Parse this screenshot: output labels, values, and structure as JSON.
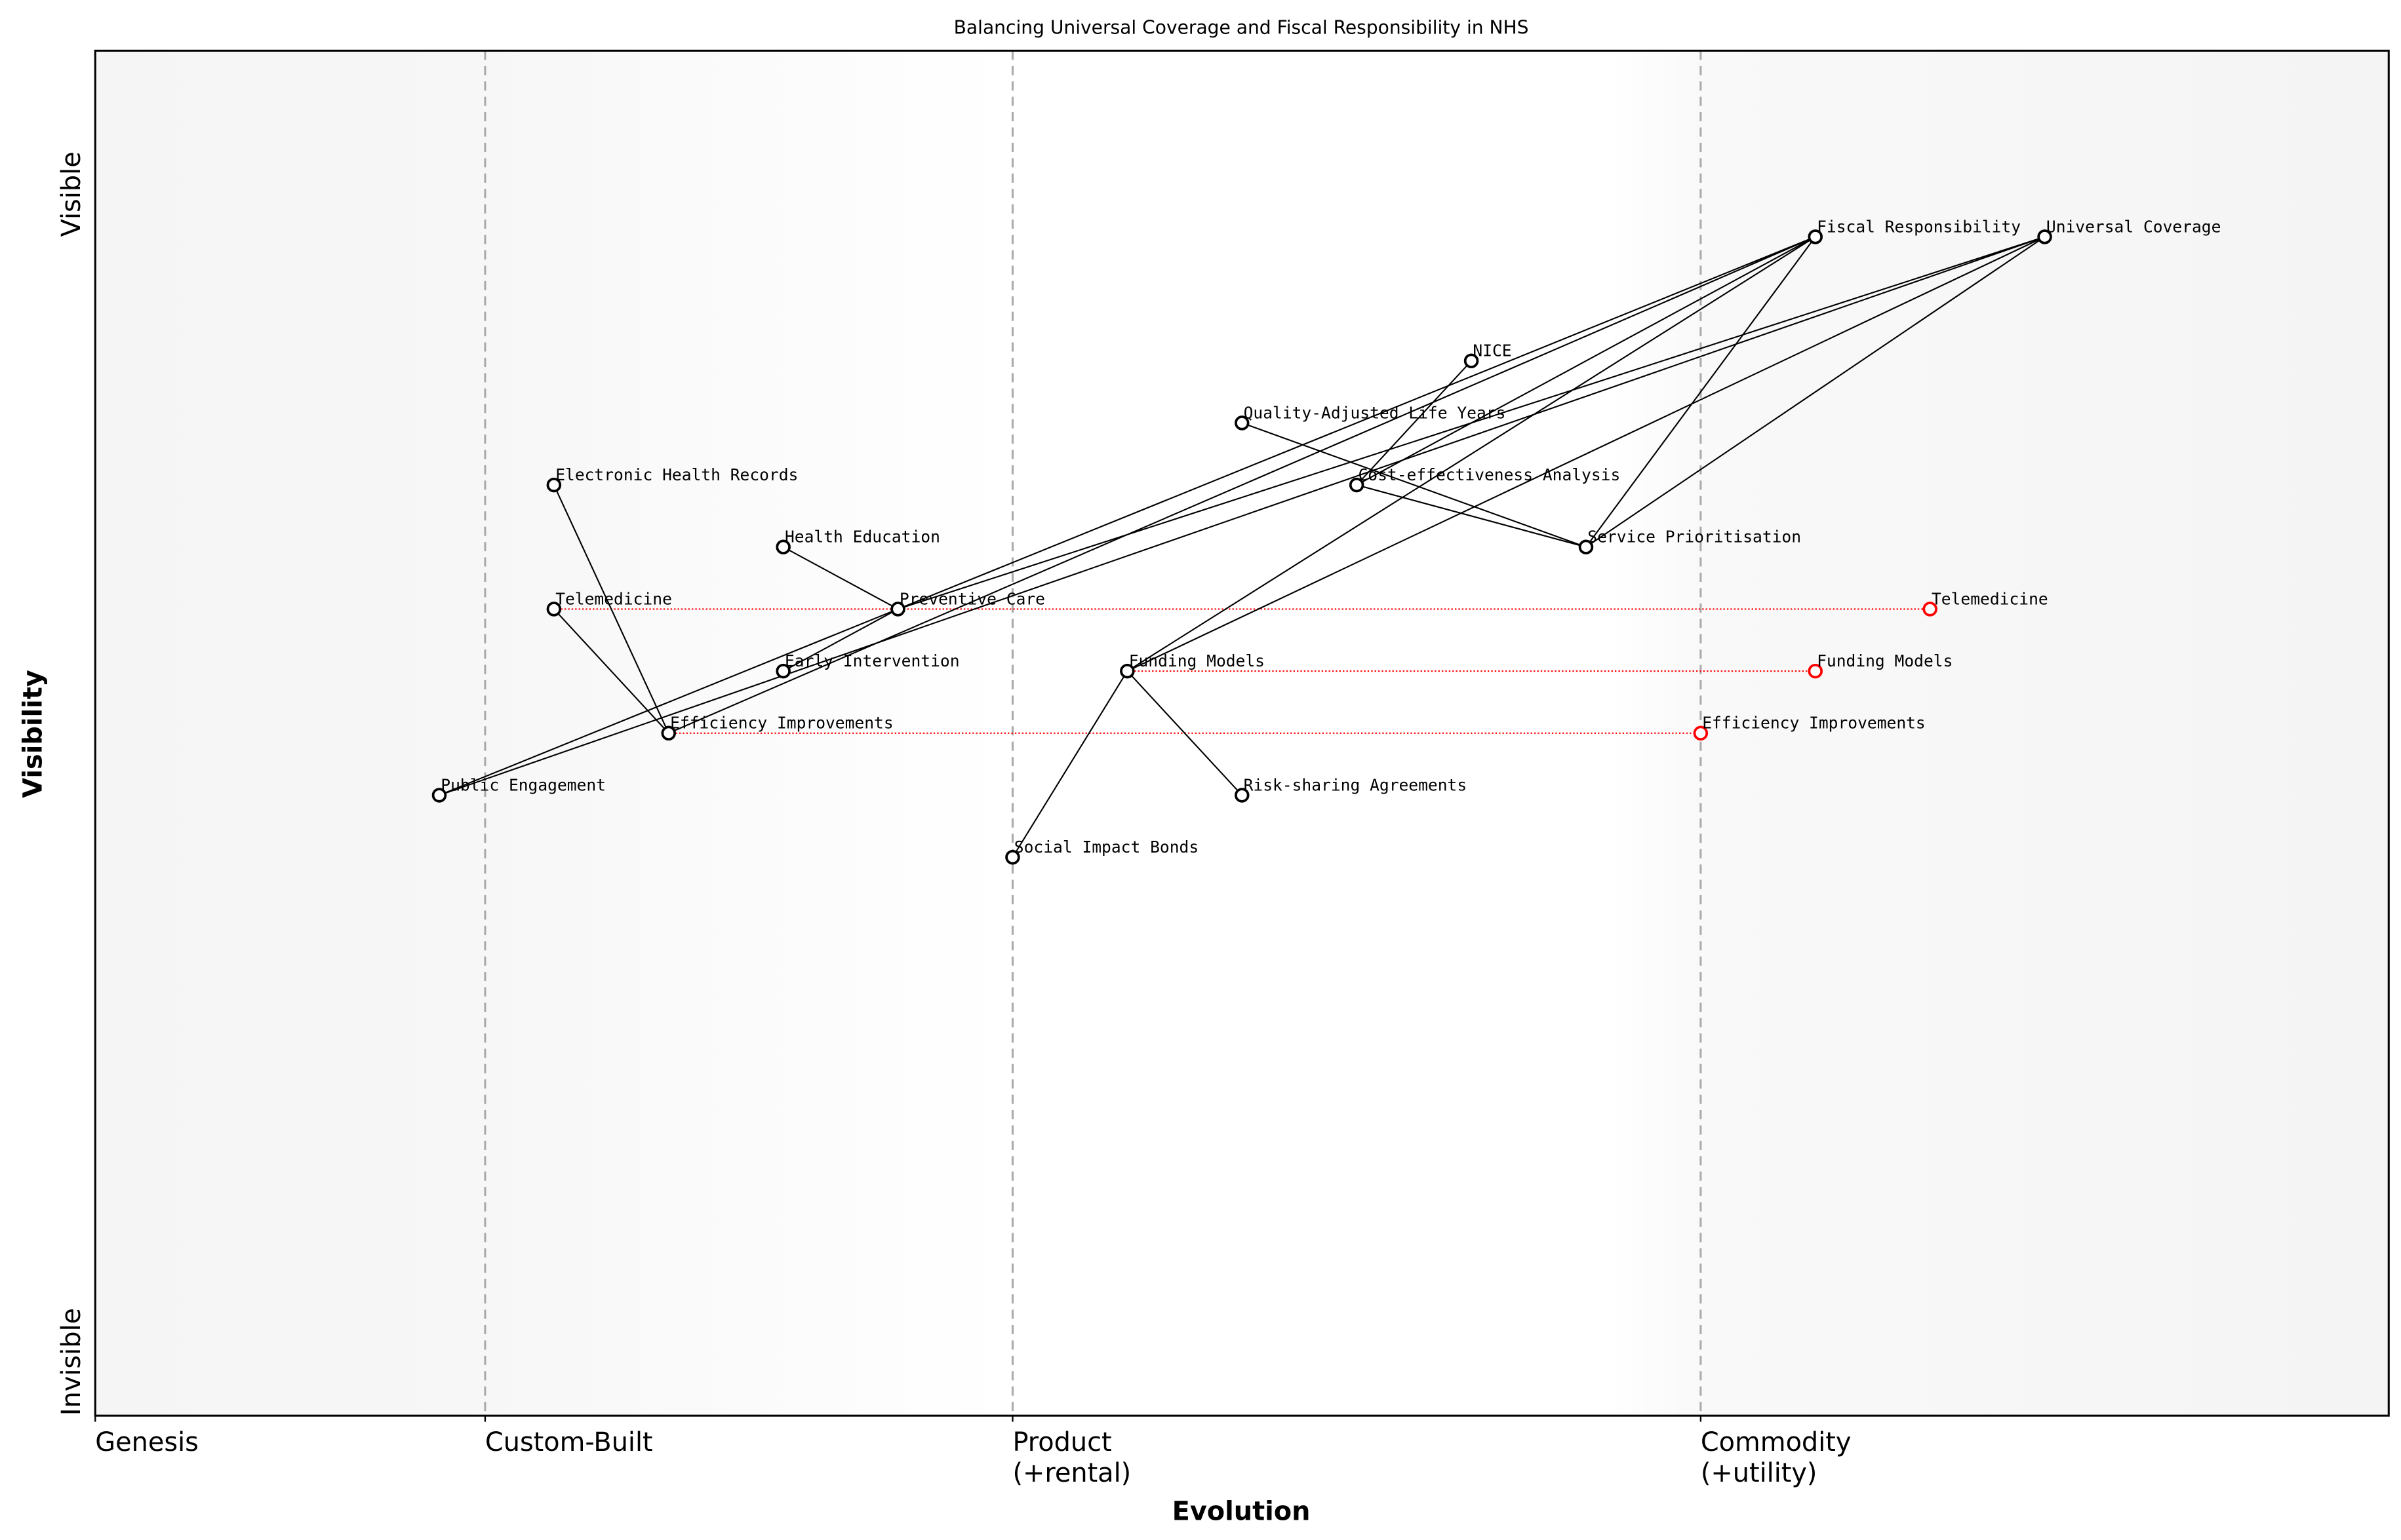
{
  "chart_data": {
    "type": "scatter",
    "subtype": "wardley-map",
    "title": "Balancing Universal Coverage and Fiscal Responsibility in NHS",
    "xlabel": "Evolution",
    "ylabel": "Visibility",
    "xlim": [
      0,
      1
    ],
    "ylim": [
      0,
      1.1
    ],
    "grid": false,
    "x_ticks": [
      {
        "value": 0,
        "label": "Genesis"
      },
      {
        "value": 0.17,
        "label": "Custom-Built"
      },
      {
        "value": 0.4,
        "label": "Product\n(+rental)"
      },
      {
        "value": 0.7,
        "label": "Commodity\n(+utility)"
      }
    ],
    "stage_dividers": [
      0.17,
      0.4,
      0.7
    ],
    "y_ticks": [
      {
        "value": 0,
        "label": "Invisible"
      },
      {
        "value": 0.95,
        "label": "Visible"
      }
    ],
    "colors": {
      "node": "#000000",
      "evolved": "#ff0000",
      "edge": "#000000",
      "divider": "#aaaaaa",
      "band": "#f5f5f5"
    },
    "components": [
      {
        "name": "Universal Coverage",
        "x": 0.85,
        "y": 0.95
      },
      {
        "name": "Fiscal Responsibility",
        "x": 0.75,
        "y": 0.95
      },
      {
        "name": "NICE",
        "x": 0.6,
        "y": 0.85
      },
      {
        "name": "Quality-Adjusted Life Years",
        "x": 0.5,
        "y": 0.8
      },
      {
        "name": "Cost-effectiveness Analysis",
        "x": 0.55,
        "y": 0.75
      },
      {
        "name": "Electronic Health Records",
        "x": 0.2,
        "y": 0.75
      },
      {
        "name": "Health Education",
        "x": 0.3,
        "y": 0.7
      },
      {
        "name": "Service Prioritisation",
        "x": 0.65,
        "y": 0.7
      },
      {
        "name": "Preventive Care",
        "x": 0.35,
        "y": 0.65
      },
      {
        "name": "Telemedicine",
        "x": 0.2,
        "y": 0.65
      },
      {
        "name": "Early Intervention",
        "x": 0.3,
        "y": 0.6
      },
      {
        "name": "Funding Models",
        "x": 0.45,
        "y": 0.6
      },
      {
        "name": "Efficiency Improvements",
        "x": 0.25,
        "y": 0.55
      },
      {
        "name": "Public Engagement",
        "x": 0.15,
        "y": 0.5
      },
      {
        "name": "Risk-sharing Agreements",
        "x": 0.5,
        "y": 0.5
      },
      {
        "name": "Social Impact Bonds",
        "x": 0.4,
        "y": 0.45
      }
    ],
    "links": [
      [
        "Fiscal Responsibility",
        "Preventive Care"
      ],
      [
        "Universal Coverage",
        "Preventive Care"
      ],
      [
        "Public Engagement",
        "Preventive Care"
      ],
      [
        "Public Engagement",
        "Universal Coverage"
      ],
      [
        "Fiscal Responsibility",
        "Efficiency Improvements"
      ],
      [
        "Early Intervention",
        "Preventive Care"
      ],
      [
        "Electronic Health Records",
        "Efficiency Improvements"
      ],
      [
        "Telemedicine",
        "Efficiency Improvements"
      ],
      [
        "Health Education",
        "Preventive Care"
      ],
      [
        "Fiscal Responsibility",
        "Funding Models"
      ],
      [
        "Universal Coverage",
        "Funding Models"
      ],
      [
        "Funding Models",
        "Risk-sharing Agreements"
      ],
      [
        "Funding Models",
        "Social Impact Bonds"
      ],
      [
        "Fiscal Responsibility",
        "Service Prioritisation"
      ],
      [
        "Universal Coverage",
        "Service Prioritisation"
      ],
      [
        "NICE",
        "Cost-effectiveness Analysis"
      ],
      [
        "Quality-Adjusted Life Years",
        "Service Prioritisation"
      ],
      [
        "Cost-effectiveness Analysis",
        "Service Prioritisation"
      ],
      [
        "Fiscal Responsibility",
        "Cost-effectiveness Analysis"
      ]
    ],
    "evolutions": [
      {
        "name": "Telemedicine",
        "from": 0.2,
        "to": 0.8,
        "y": 0.65
      },
      {
        "name": "Funding Models",
        "from": 0.45,
        "to": 0.75,
        "y": 0.6
      },
      {
        "name": "Efficiency Improvements",
        "from": 0.25,
        "to": 0.7,
        "y": 0.55
      }
    ]
  }
}
